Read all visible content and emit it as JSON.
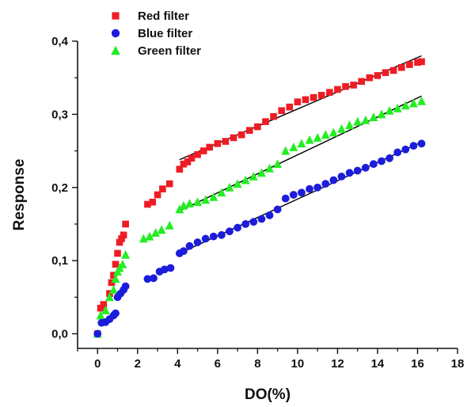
{
  "chart_data": {
    "type": "scatter",
    "title": "",
    "xlabel": "DO(%)",
    "ylabel": "Response",
    "xlim": [
      -1,
      18
    ],
    "ylim": [
      -0.02,
      0.4
    ],
    "x_ticks": [
      0,
      2,
      4,
      6,
      8,
      10,
      12,
      14,
      16,
      18
    ],
    "x_tick_labels": [
      "0",
      "2",
      "4",
      "6",
      "8",
      "10",
      "12",
      "14",
      "16",
      "18"
    ],
    "y_ticks": [
      0.0,
      0.1,
      0.2,
      0.3,
      0.4
    ],
    "y_tick_labels": [
      "0,0",
      "0,1",
      "0,2",
      "0,3",
      "0,4"
    ],
    "grid": false,
    "legend_position": "top-left",
    "series": [
      {
        "name": "Red filter",
        "color": "#ee1c24",
        "marker": "square",
        "points": [
          [
            0,
            0.0
          ],
          [
            0.15,
            0.035
          ],
          [
            0.3,
            0.04
          ],
          [
            0.6,
            0.055
          ],
          [
            0.7,
            0.07
          ],
          [
            0.8,
            0.08
          ],
          [
            0.9,
            0.095
          ],
          [
            1.0,
            0.11
          ],
          [
            1.1,
            0.125
          ],
          [
            1.2,
            0.13
          ],
          [
            1.3,
            0.135
          ],
          [
            1.4,
            0.15
          ],
          [
            2.5,
            0.177
          ],
          [
            2.75,
            0.18
          ],
          [
            3.0,
            0.19
          ],
          [
            3.25,
            0.198
          ],
          [
            3.6,
            0.205
          ],
          [
            4.1,
            0.225
          ],
          [
            4.3,
            0.232
          ],
          [
            4.5,
            0.235
          ],
          [
            4.7,
            0.24
          ],
          [
            5.0,
            0.245
          ],
          [
            5.3,
            0.25
          ],
          [
            5.6,
            0.255
          ],
          [
            6.0,
            0.26
          ],
          [
            6.4,
            0.263
          ],
          [
            6.8,
            0.268
          ],
          [
            7.2,
            0.272
          ],
          [
            7.6,
            0.278
          ],
          [
            8.0,
            0.283
          ],
          [
            8.4,
            0.29
          ],
          [
            8.8,
            0.297
          ],
          [
            9.2,
            0.305
          ],
          [
            9.6,
            0.31
          ],
          [
            10.0,
            0.317
          ],
          [
            10.4,
            0.32
          ],
          [
            10.8,
            0.323
          ],
          [
            11.2,
            0.326
          ],
          [
            11.6,
            0.33
          ],
          [
            12.0,
            0.334
          ],
          [
            12.4,
            0.338
          ],
          [
            12.8,
            0.34
          ],
          [
            13.2,
            0.345
          ],
          [
            13.6,
            0.35
          ],
          [
            14.0,
            0.353
          ],
          [
            14.4,
            0.357
          ],
          [
            14.8,
            0.36
          ],
          [
            15.2,
            0.364
          ],
          [
            15.6,
            0.368
          ],
          [
            16.0,
            0.371
          ],
          [
            16.2,
            0.372
          ]
        ]
      },
      {
        "name": "Blue filter",
        "color": "#1c1cdc",
        "marker": "circle",
        "points": [
          [
            0,
            0.0
          ],
          [
            0.2,
            0.015
          ],
          [
            0.4,
            0.016
          ],
          [
            0.6,
            0.02
          ],
          [
            0.8,
            0.025
          ],
          [
            0.9,
            0.028
          ],
          [
            1.0,
            0.05
          ],
          [
            1.15,
            0.055
          ],
          [
            1.3,
            0.06
          ],
          [
            1.4,
            0.065
          ],
          [
            2.5,
            0.075
          ],
          [
            2.8,
            0.076
          ],
          [
            3.1,
            0.085
          ],
          [
            3.35,
            0.088
          ],
          [
            3.65,
            0.09
          ],
          [
            4.1,
            0.11
          ],
          [
            4.3,
            0.113
          ],
          [
            4.6,
            0.12
          ],
          [
            5.0,
            0.125
          ],
          [
            5.4,
            0.13
          ],
          [
            5.8,
            0.133
          ],
          [
            6.2,
            0.135
          ],
          [
            6.6,
            0.14
          ],
          [
            7.0,
            0.145
          ],
          [
            7.4,
            0.15
          ],
          [
            7.8,
            0.153
          ],
          [
            8.2,
            0.157
          ],
          [
            8.6,
            0.162
          ],
          [
            9.0,
            0.17
          ],
          [
            9.4,
            0.185
          ],
          [
            9.8,
            0.19
          ],
          [
            10.2,
            0.193
          ],
          [
            10.6,
            0.198
          ],
          [
            11.0,
            0.2
          ],
          [
            11.4,
            0.205
          ],
          [
            11.8,
            0.21
          ],
          [
            12.2,
            0.215
          ],
          [
            12.6,
            0.22
          ],
          [
            13.0,
            0.223
          ],
          [
            13.4,
            0.227
          ],
          [
            13.8,
            0.232
          ],
          [
            14.2,
            0.236
          ],
          [
            14.6,
            0.24
          ],
          [
            15.0,
            0.248
          ],
          [
            15.4,
            0.252
          ],
          [
            15.8,
            0.257
          ],
          [
            16.2,
            0.26
          ]
        ]
      },
      {
        "name": "Green filter",
        "color": "#22ee22",
        "marker": "triangle",
        "points": [
          [
            0,
            0.0
          ],
          [
            0.15,
            0.025
          ],
          [
            0.4,
            0.032
          ],
          [
            0.6,
            0.05
          ],
          [
            0.8,
            0.06
          ],
          [
            0.9,
            0.075
          ],
          [
            1.0,
            0.085
          ],
          [
            1.1,
            0.09
          ],
          [
            1.25,
            0.095
          ],
          [
            1.4,
            0.108
          ],
          [
            2.3,
            0.13
          ],
          [
            2.6,
            0.133
          ],
          [
            2.9,
            0.138
          ],
          [
            3.2,
            0.142
          ],
          [
            3.6,
            0.148
          ],
          [
            4.1,
            0.17
          ],
          [
            4.3,
            0.175
          ],
          [
            4.6,
            0.178
          ],
          [
            5.0,
            0.18
          ],
          [
            5.4,
            0.183
          ],
          [
            5.8,
            0.187
          ],
          [
            6.2,
            0.193
          ],
          [
            6.6,
            0.2
          ],
          [
            7.0,
            0.205
          ],
          [
            7.4,
            0.21
          ],
          [
            7.8,
            0.215
          ],
          [
            8.2,
            0.22
          ],
          [
            8.6,
            0.226
          ],
          [
            9.0,
            0.232
          ],
          [
            9.4,
            0.25
          ],
          [
            9.8,
            0.255
          ],
          [
            10.2,
            0.26
          ],
          [
            10.6,
            0.265
          ],
          [
            11.0,
            0.268
          ],
          [
            11.4,
            0.272
          ],
          [
            11.8,
            0.275
          ],
          [
            12.2,
            0.28
          ],
          [
            12.6,
            0.285
          ],
          [
            13.0,
            0.29
          ],
          [
            13.4,
            0.292
          ],
          [
            13.8,
            0.296
          ],
          [
            14.2,
            0.3
          ],
          [
            14.6,
            0.305
          ],
          [
            15.0,
            0.308
          ],
          [
            15.4,
            0.312
          ],
          [
            15.8,
            0.315
          ],
          [
            16.2,
            0.318
          ]
        ]
      }
    ],
    "fit_lines": [
      {
        "series": "Red filter",
        "color": "#000000",
        "from": [
          4.1,
          0.238
        ],
        "to": [
          16.2,
          0.38
        ]
      },
      {
        "series": "Green filter",
        "color": "#000000",
        "from": [
          4.1,
          0.168
        ],
        "to": [
          16.2,
          0.325
        ]
      },
      {
        "series": "Blue filter",
        "color": "#000000",
        "from": [
          4.1,
          0.11
        ],
        "to": [
          16.2,
          0.262
        ]
      }
    ]
  }
}
